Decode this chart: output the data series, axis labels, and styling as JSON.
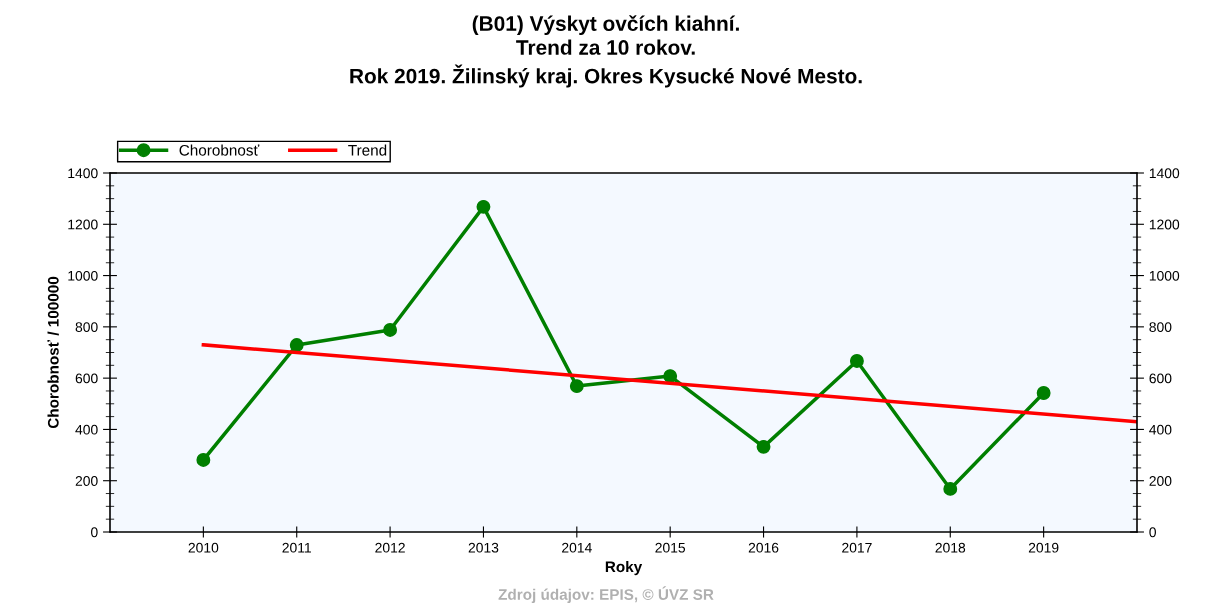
{
  "chart_data": {
    "type": "line",
    "title": "(B01) Výskyt ovčích kiahní.\nTrend za 10 rokov.\nRok 2019. Žilinský kraj. Okres Kysucké Nové Mesto.",
    "xlabel": "Roky",
    "ylabel": "Chorobnosť / 100000",
    "x": [
      2010,
      2011,
      2012,
      2013,
      2014,
      2015,
      2016,
      2017,
      2018,
      2019
    ],
    "series": [
      {
        "name": "Chorobnosť",
        "color": "#007f00",
        "marker": "circle",
        "values": [
          281,
          729,
          788,
          1268,
          569,
          608,
          332,
          667,
          168,
          542
        ]
      },
      {
        "name": "Trend",
        "color": "#ff0000",
        "marker": "none",
        "x": [
          2010,
          2020
        ],
        "values": [
          730,
          430
        ]
      }
    ],
    "xlim": [
      2009,
      2020
    ],
    "xticks": [
      2010,
      2011,
      2012,
      2013,
      2014,
      2015,
      2016,
      2017,
      2018,
      2019
    ],
    "ylim": [
      0,
      1400
    ],
    "yticks": [
      0,
      200,
      400,
      600,
      800,
      1000,
      1200,
      1400
    ],
    "y2lim": [
      0,
      1400
    ],
    "y2ticks": [
      0,
      200,
      400,
      600,
      800,
      1000,
      1200,
      1400
    ],
    "grid": false,
    "legend": "top left",
    "annotations": [
      "Zdroj údajov: EPIS, © ÚVZ SR"
    ]
  }
}
